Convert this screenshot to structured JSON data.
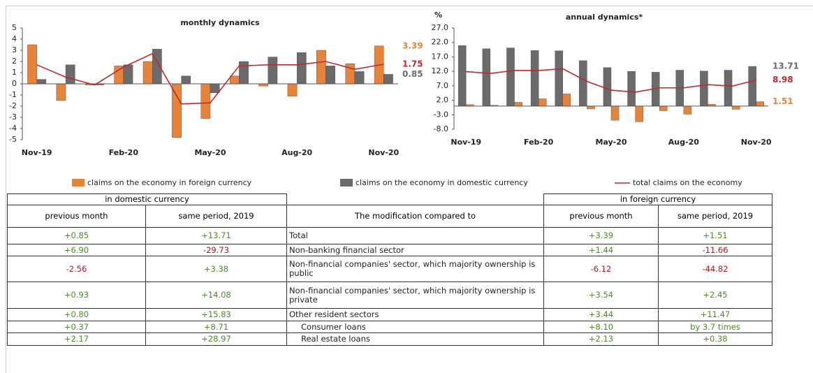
{
  "chart_data": [
    {
      "type": "bar",
      "title": "monthly dynamics",
      "categories": [
        "Nov-19",
        null,
        null,
        "Feb-20",
        null,
        null,
        "May-20",
        null,
        null,
        "Aug-20",
        null,
        null,
        "Nov-20"
      ],
      "ylim": [
        -5,
        5
      ],
      "yticks": [
        -5,
        -4,
        -3,
        -2,
        -1,
        0,
        1,
        2,
        3,
        4,
        5
      ],
      "series": [
        {
          "name": "claims on the economy in foreign currency",
          "color": "#e8833a",
          "values": [
            3.5,
            -1.5,
            -0.1,
            1.6,
            2.0,
            -4.8,
            -3.1,
            0.7,
            -0.2,
            -1.1,
            3.0,
            1.8,
            3.39
          ]
        },
        {
          "name": "claims on the economy in domestic currency",
          "color": "#6b6b6b",
          "values": [
            0.4,
            1.7,
            -0.1,
            1.7,
            3.1,
            0.7,
            -0.8,
            2.0,
            2.4,
            2.8,
            1.6,
            1.1,
            0.85
          ]
        },
        {
          "name": "total claims on the economy",
          "type": "line",
          "color": "#c0282d",
          "values": [
            1.7,
            0.6,
            -0.1,
            1.5,
            2.7,
            -1.8,
            -1.7,
            1.6,
            1.7,
            1.7,
            2.0,
            1.3,
            1.75
          ]
        }
      ]
    },
    {
      "type": "bar",
      "title": "annual dynamics*",
      "ylabel": "%",
      "categories": [
        "Nov-19",
        null,
        null,
        "Feb-20",
        null,
        null,
        "May-20",
        null,
        null,
        "Aug-20",
        null,
        null,
        "Nov-20"
      ],
      "ylim": [
        -8,
        27
      ],
      "yticks": [
        {
          "value": -8,
          "label": "-8.0"
        },
        {
          "value": -3,
          "label": "-3.0"
        },
        {
          "value": 2,
          "label": "2.0"
        },
        {
          "value": 7,
          "label": "7.0"
        },
        {
          "value": 12,
          "label": "12.0"
        },
        {
          "value": 17,
          "label": "17.0"
        },
        {
          "value": 22,
          "label": "22.0"
        },
        {
          "value": 27,
          "label": "27.0"
        }
      ],
      "series": [
        {
          "color": "#6b6b6b",
          "values": [
            20.9,
            19.8,
            20.1,
            19.2,
            19.1,
            15.7,
            13.3,
            12.0,
            11.7,
            12.4,
            12.1,
            12.4,
            13.71
          ]
        },
        {
          "color": "#e8833a",
          "values": [
            0.5,
            0.3,
            1.3,
            2.5,
            4.2,
            -1.0,
            -4.9,
            -5.4,
            -1.6,
            -2.8,
            0.6,
            -1.1,
            1.51
          ]
        },
        {
          "type": "line",
          "color": "#c0282d",
          "values": [
            11.9,
            11.3,
            12.3,
            12.3,
            12.9,
            8.5,
            5.5,
            4.8,
            6.3,
            6.3,
            7.4,
            6.9,
            8.98
          ]
        }
      ]
    }
  ],
  "table": {
    "groups": [
      "in domestic currency",
      "in foreign currency"
    ],
    "columns": [
      "previous month",
      "same period, 2019",
      "The modification compared to",
      "previous month",
      "same period, 2019"
    ],
    "rows": [
      [
        "+0.85",
        "+13.71",
        "Total",
        "+3.39",
        "+1.51"
      ],
      [
        "+6.90",
        "-29.73",
        "Non-banking financial sector",
        "+1.44",
        "-11.66"
      ],
      [
        "-2.56",
        "+3.38",
        "Non-financial companies' sector, which majority ownership is public",
        "-6.12",
        "-44.82"
      ],
      [
        "+0.93",
        "+14.08",
        "Non-financial companies' sector, which majority ownership is private",
        "+3.54",
        "+2.45"
      ],
      [
        "+0.80",
        "+15.83",
        "Other resident sectors",
        "+3.44",
        "+11.47"
      ],
      [
        "+0.37",
        "+8.71",
        "Consumer loans",
        "+8.10",
        "by 3.7 times"
      ],
      [
        "+2.17",
        "+28.97",
        "Real estate loans",
        "+2.13",
        "+0.38"
      ]
    ]
  }
}
